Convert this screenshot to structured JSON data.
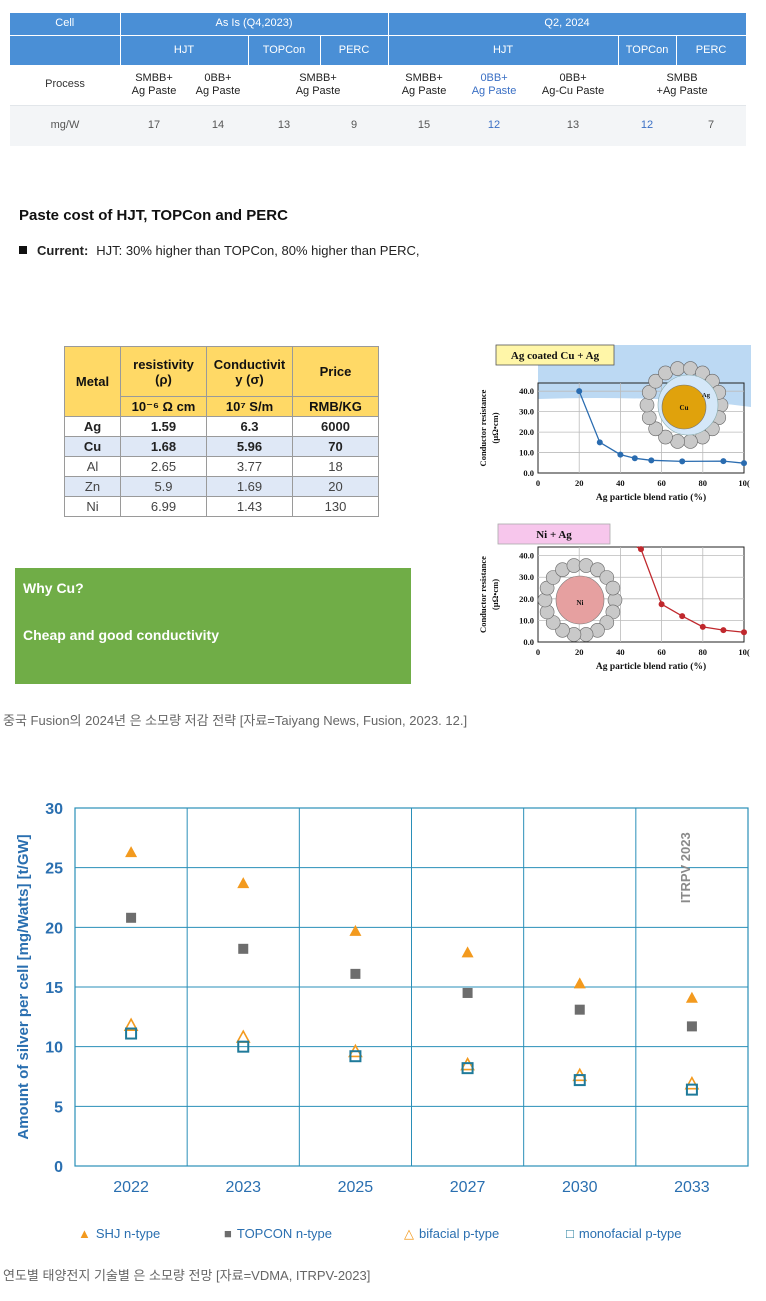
{
  "top_table": {
    "h1": {
      "cell": "Cell",
      "as_is": "As Is (Q4,2023)",
      "q2": "Q2, 2024"
    },
    "h2": {
      "hjt1": "HJT",
      "topcon1": "TOPCon",
      "perc1": "PERC",
      "hjt2": "HJT",
      "topcon2": "TOPCon",
      "perc2": "PERC"
    },
    "process_label": "Process",
    "process": [
      "SMBB+\nAg Paste",
      "0BB+\nAg Paste",
      "SMBB+\nAg Paste",
      "SMBB+\nAg Paste",
      "0BB+\nAg Paste",
      "0BB+\nAg-Cu Paste",
      "SMBB\n+Ag Paste"
    ],
    "mgw_label": "mg/W",
    "mgw": [
      "17",
      "14",
      "13",
      "9",
      "15",
      "12",
      "13",
      "12",
      "7"
    ]
  },
  "paste": {
    "title": "Paste cost of HJT, TOPCon and PERC",
    "current_label": "Current:",
    "current_text": "HJT: 30% higher than TOPCon,  80% higher than PERC,"
  },
  "metal_table": {
    "headers": {
      "metal": "Metal",
      "resistivity": "resistivity",
      "resistivity_sym": "(ρ)",
      "conductivity": "Conductivit",
      "conductivity_sym": "y  (σ)",
      "price": "Price"
    },
    "units": {
      "res": "10⁻⁶ Ω cm",
      "cond": "10⁷ S/m",
      "price": "RMB/KG"
    },
    "rows": [
      {
        "metal": "Ag",
        "res": "1.59",
        "cond": "6.3",
        "price": "6000"
      },
      {
        "metal": "Cu",
        "res": "1.68",
        "cond": "5.96",
        "price": "70"
      },
      {
        "metal": "Al",
        "res": "2.65",
        "cond": "3.77",
        "price": "18"
      },
      {
        "metal": "Zn",
        "res": "5.9",
        "cond": "1.69",
        "price": "20"
      },
      {
        "metal": "Ni",
        "res": "6.99",
        "cond": "1.43",
        "price": "130"
      }
    ]
  },
  "why": {
    "question": "Why Cu?",
    "answer": "Cheap and good conductivity"
  },
  "caption1": "중국 Fusion의 2024년 은 소모량 저감 전략  [자료=Taiyang News, Fusion, 2023. 12.]",
  "caption2": "연도별 태양전지 기술별 은 소모량 전망  [자료=VDMA, ITRPV-2023]",
  "mini_charts": [
    {
      "title": "Ag coated Cu + Ag",
      "ylabel": "Conductor resistance",
      "yunit": "(μΩ•cm)",
      "xlabel": "Ag particle blend ratio (%)",
      "particle_label_inner": "Cu",
      "particle_label_shell": "Ag",
      "line_color": "#2a6cb0",
      "inner_color": "#e0a20c",
      "x": [
        20,
        30,
        40,
        47,
        55,
        70,
        90,
        100
      ],
      "y": [
        40.0,
        15.0,
        9.0,
        7.2,
        6.2,
        5.7,
        5.8,
        4.8
      ],
      "yticks": [
        "0.0",
        "10.0",
        "20.0",
        "30.0",
        "40.0"
      ],
      "xticks": [
        "0",
        "20",
        "40",
        "60",
        "80",
        "10("
      ]
    },
    {
      "title": "Ni + Ag",
      "ylabel": "Conductor resistance",
      "yunit": "(μΩ•cm)",
      "xlabel": "Ag particle blend ratio (%)",
      "particle_label_inner": "Ni",
      "line_color": "#c0282d",
      "inner_color": "#e6a0a0",
      "x": [
        50,
        60,
        70,
        80,
        90,
        100
      ],
      "y": [
        43.0,
        17.5,
        12.0,
        7.0,
        5.5,
        4.5
      ],
      "yticks": [
        "0.0",
        "10.0",
        "20.0",
        "30.0",
        "40.0"
      ],
      "xticks": [
        "0",
        "20",
        "40",
        "60",
        "80",
        "10("
      ]
    }
  ],
  "chart_data": {
    "type": "scatter",
    "categories": [
      "2022",
      "2023",
      "2025",
      "2027",
      "2030",
      "2033"
    ],
    "ylabel": "Amount of silver per cell [mg/Watts] [t/GW]",
    "ylim": [
      0,
      30
    ],
    "yticks": [
      "0",
      "5",
      "10",
      "15",
      "20",
      "25",
      "30"
    ],
    "annotation": "ITRPV 2023",
    "grid": true,
    "legend_position": "bottom",
    "series": [
      {
        "name": "SHJ n-type",
        "marker": "triangle-filled",
        "color": "#f39a1e",
        "values": [
          26.3,
          23.7,
          19.7,
          17.9,
          15.3,
          14.1
        ]
      },
      {
        "name": "TOPCON n-type",
        "marker": "square-filled",
        "color": "#6d6d6d",
        "values": [
          20.8,
          18.2,
          16.1,
          14.5,
          13.1,
          11.7
        ]
      },
      {
        "name": "bifacial p-type",
        "marker": "triangle-open",
        "color": "#f39a1e",
        "values": [
          11.8,
          10.8,
          9.6,
          8.5,
          7.6,
          6.9
        ]
      },
      {
        "name": "monofacial p-type",
        "marker": "square-open",
        "color": "#1f7a9a",
        "values": [
          11.1,
          10.0,
          9.2,
          8.2,
          7.2,
          6.4
        ]
      }
    ]
  }
}
